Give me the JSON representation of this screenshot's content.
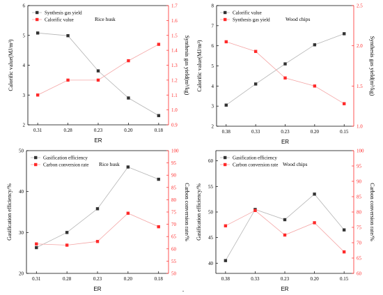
{
  "colors": {
    "black_series": "#333333",
    "red_series": "#ff2a2a",
    "line_black": "#b5b5b5",
    "line_red": "#f4a5a5"
  },
  "chart_data": [
    {
      "type": "line",
      "annotation": "Rice husk",
      "xlabel": "ER",
      "categories": [
        "0.31",
        "0.28",
        "0.23",
        "0.20",
        "0.18"
      ],
      "left_axis": {
        "label": "Calorific value(MJ/m³)",
        "ylim": [
          2,
          6
        ],
        "ticks": [
          "2",
          "3",
          "4",
          "5",
          "6"
        ]
      },
      "right_axis": {
        "label": "Synthesis gas yield(m³/kg)",
        "ylim": [
          0.9,
          1.7
        ],
        "ticks": [
          "0.9",
          "1.0",
          "1.1",
          "1.2",
          "1.3",
          "1.4",
          "1.5",
          "1.6",
          "1.7"
        ]
      },
      "legend": [
        "Synthesis gas yield",
        "Calorific value"
      ],
      "legend_position": "top-left",
      "series": [
        {
          "axis": "left",
          "color": "black",
          "values": [
            5.08,
            4.99,
            3.81,
            2.9,
            2.31
          ]
        },
        {
          "axis": "right",
          "color": "red",
          "values": [
            1.1,
            1.2,
            1.2,
            1.33,
            1.44
          ]
        }
      ]
    },
    {
      "type": "line",
      "annotation": "Wood chips",
      "xlabel": "ER",
      "categories": [
        "0.38",
        "0.33",
        "0.23",
        "0.20",
        "0.15"
      ],
      "left_axis": {
        "label": "Calorific value(MJ/m³)",
        "ylim": [
          2,
          8
        ],
        "ticks": [
          "2",
          "3",
          "4",
          "5",
          "6",
          "7",
          "8"
        ]
      },
      "right_axis": {
        "label": "Synthesis gas yield(m³/kg)",
        "ylim": [
          1.0,
          2.5
        ],
        "ticks": [
          "1.0",
          "1.5",
          "2.0",
          "2.5"
        ]
      },
      "legend": [
        "Calorific value",
        "Synthesis gas yield"
      ],
      "legend_position": "top-left",
      "series": [
        {
          "axis": "left",
          "color": "black",
          "values": [
            3.05,
            4.1,
            5.1,
            6.05,
            6.6
          ]
        },
        {
          "axis": "right",
          "color": "red",
          "values": [
            2.05,
            1.93,
            1.6,
            1.5,
            1.28
          ]
        }
      ]
    },
    {
      "type": "line",
      "annotation": "Rice husk",
      "xlabel": "ER",
      "categories": [
        "0.31",
        "0.28",
        "0.23",
        "0.20",
        "0.18"
      ],
      "left_axis": {
        "label": "Gasification efficiency/%",
        "ylim": [
          20,
          50
        ],
        "ticks": [
          "20",
          "30",
          "40",
          "50"
        ]
      },
      "right_axis": {
        "label": "Carbon conversion rate/%",
        "ylim": [
          50,
          100
        ],
        "ticks": [
          "50",
          "55",
          "60",
          "65",
          "70",
          "75",
          "80",
          "85",
          "90",
          "95",
          "100"
        ]
      },
      "legend": [
        "Gasification efficiency",
        "Carbon conversion rate"
      ],
      "legend_position": "top-left",
      "series": [
        {
          "axis": "left",
          "color": "black",
          "values": [
            26.3,
            30,
            35.8,
            46,
            43
          ]
        },
        {
          "axis": "right",
          "color": "red",
          "values": [
            62,
            61.5,
            63,
            74.5,
            69
          ]
        }
      ]
    },
    {
      "type": "line",
      "annotation": "Wood chips",
      "xlabel": "ER",
      "categories": [
        "0.38",
        "0.33",
        "0.23",
        "0.20",
        "0.15"
      ],
      "left_axis": {
        "label": "Gasification efficiency/%",
        "ylim": [
          38,
          62
        ],
        "ticks": [
          "40",
          "45",
          "50",
          "55",
          "60"
        ]
      },
      "right_axis": {
        "label": "Carbon conversion rate/%",
        "ylim": [
          60,
          100
        ],
        "ticks": [
          "60",
          "65",
          "70",
          "75",
          "80",
          "85",
          "90",
          "95",
          "100"
        ]
      },
      "legend": [
        "Gasification efficiency",
        "Carbon conversion rate"
      ],
      "legend_position": "top-left",
      "series": [
        {
          "axis": "left",
          "color": "black",
          "values": [
            40.5,
            50.5,
            48.5,
            53.5,
            46.5
          ]
        },
        {
          "axis": "right",
          "color": "red",
          "values": [
            75.5,
            80.5,
            72.5,
            76.5,
            67
          ]
        }
      ]
    }
  ]
}
